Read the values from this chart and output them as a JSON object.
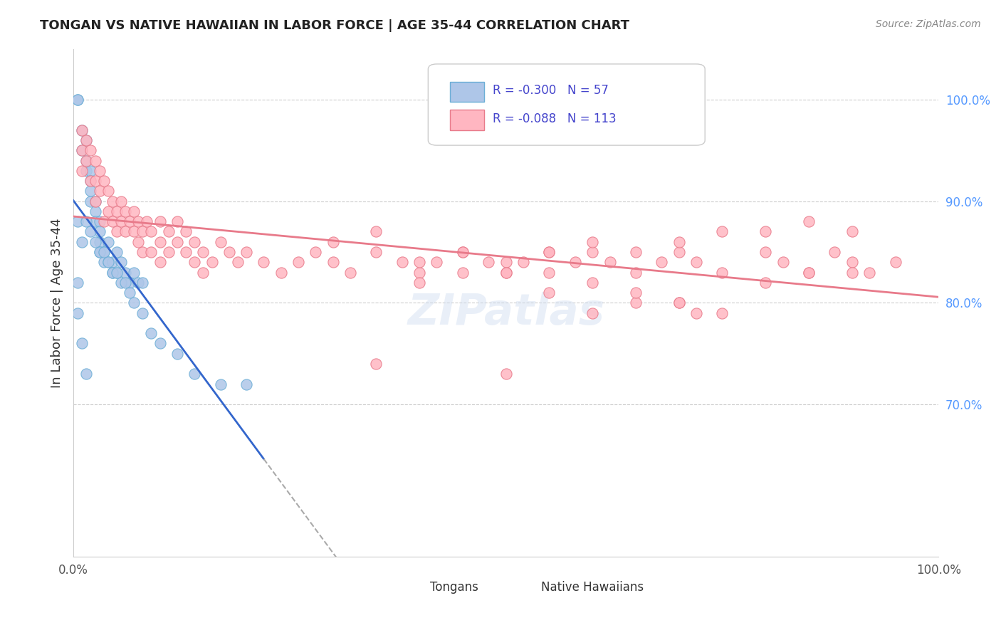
{
  "title": "TONGAN VS NATIVE HAWAIIAN IN LABOR FORCE | AGE 35-44 CORRELATION CHART",
  "source": "Source: ZipAtlas.com",
  "xlabel": "",
  "ylabel": "In Labor Force | Age 35-44",
  "xmin": 0.0,
  "xmax": 1.0,
  "ymin": 0.55,
  "ymax": 1.05,
  "xtick_labels": [
    "0.0%",
    "100.0%"
  ],
  "ytick_labels": [
    "70.0%",
    "80.0%",
    "90.0%",
    "100.0%"
  ],
  "ytick_positions": [
    0.7,
    0.8,
    0.9,
    1.0
  ],
  "background_color": "#ffffff",
  "grid_color": "#cccccc",
  "tongan_color": "#aec6e8",
  "tongan_edge_color": "#6baed6",
  "native_hawaiian_color": "#ffb6c1",
  "native_hawaiian_edge_color": "#e87a8a",
  "tongan_R": "-0.300",
  "tongan_N": "57",
  "native_hawaiian_R": "-0.088",
  "native_hawaiian_N": "113",
  "legend_text_color": "#4444cc",
  "watermark": "ZIPatlas",
  "tongan_x": [
    0.005,
    0.005,
    0.01,
    0.01,
    0.015,
    0.015,
    0.015,
    0.02,
    0.02,
    0.02,
    0.02,
    0.025,
    0.025,
    0.025,
    0.03,
    0.03,
    0.03,
    0.03,
    0.035,
    0.035,
    0.04,
    0.04,
    0.045,
    0.045,
    0.05,
    0.05,
    0.055,
    0.06,
    0.065,
    0.07,
    0.075,
    0.08,
    0.005,
    0.01,
    0.015,
    0.02,
    0.025,
    0.03,
    0.035,
    0.04,
    0.045,
    0.05,
    0.055,
    0.06,
    0.065,
    0.07,
    0.08,
    0.09,
    0.1,
    0.12,
    0.14,
    0.17,
    0.005,
    0.005,
    0.01,
    0.015,
    0.2
  ],
  "tongan_y": [
    1.0,
    1.0,
    0.97,
    0.95,
    0.96,
    0.94,
    0.93,
    0.93,
    0.92,
    0.91,
    0.9,
    0.9,
    0.89,
    0.88,
    0.88,
    0.87,
    0.86,
    0.85,
    0.85,
    0.84,
    0.86,
    0.84,
    0.84,
    0.83,
    0.85,
    0.83,
    0.84,
    0.83,
    0.82,
    0.83,
    0.82,
    0.82,
    0.88,
    0.86,
    0.88,
    0.87,
    0.86,
    0.85,
    0.85,
    0.84,
    0.83,
    0.83,
    0.82,
    0.82,
    0.81,
    0.8,
    0.79,
    0.77,
    0.76,
    0.75,
    0.73,
    0.72,
    0.82,
    0.79,
    0.76,
    0.73,
    0.72
  ],
  "native_hawaiian_x": [
    0.01,
    0.01,
    0.01,
    0.015,
    0.015,
    0.02,
    0.02,
    0.025,
    0.025,
    0.025,
    0.03,
    0.03,
    0.035,
    0.035,
    0.04,
    0.04,
    0.045,
    0.045,
    0.05,
    0.05,
    0.055,
    0.055,
    0.06,
    0.06,
    0.065,
    0.07,
    0.07,
    0.075,
    0.075,
    0.08,
    0.08,
    0.085,
    0.09,
    0.09,
    0.1,
    0.1,
    0.1,
    0.11,
    0.11,
    0.12,
    0.12,
    0.13,
    0.13,
    0.14,
    0.14,
    0.15,
    0.15,
    0.16,
    0.17,
    0.18,
    0.19,
    0.2,
    0.22,
    0.24,
    0.26,
    0.28,
    0.3,
    0.32,
    0.35,
    0.38,
    0.4,
    0.42,
    0.45,
    0.48,
    0.5,
    0.52,
    0.55,
    0.58,
    0.6,
    0.62,
    0.65,
    0.68,
    0.7,
    0.72,
    0.75,
    0.8,
    0.82,
    0.85,
    0.88,
    0.9,
    0.92,
    0.95,
    0.35,
    0.5,
    0.6,
    0.7,
    0.75,
    0.8,
    0.85,
    0.9,
    0.6,
    0.65,
    0.5,
    0.55,
    0.4,
    0.45,
    0.55,
    0.65,
    0.7,
    0.72,
    0.3,
    0.35,
    0.4,
    0.45,
    0.5,
    0.55,
    0.6,
    0.65,
    0.7,
    0.75,
    0.8,
    0.85,
    0.9
  ],
  "native_hawaiian_y": [
    0.97,
    0.95,
    0.93,
    0.96,
    0.94,
    0.95,
    0.92,
    0.94,
    0.92,
    0.9,
    0.93,
    0.91,
    0.92,
    0.88,
    0.91,
    0.89,
    0.9,
    0.88,
    0.89,
    0.87,
    0.9,
    0.88,
    0.89,
    0.87,
    0.88,
    0.89,
    0.87,
    0.88,
    0.86,
    0.87,
    0.85,
    0.88,
    0.87,
    0.85,
    0.88,
    0.86,
    0.84,
    0.87,
    0.85,
    0.88,
    0.86,
    0.87,
    0.85,
    0.86,
    0.84,
    0.85,
    0.83,
    0.84,
    0.86,
    0.85,
    0.84,
    0.85,
    0.84,
    0.83,
    0.84,
    0.85,
    0.84,
    0.83,
    0.85,
    0.84,
    0.83,
    0.84,
    0.85,
    0.84,
    0.83,
    0.84,
    0.83,
    0.84,
    0.85,
    0.84,
    0.83,
    0.84,
    0.85,
    0.84,
    0.83,
    0.85,
    0.84,
    0.83,
    0.85,
    0.84,
    0.83,
    0.84,
    0.74,
    0.73,
    0.82,
    0.8,
    0.79,
    0.82,
    0.83,
    0.83,
    0.79,
    0.8,
    0.84,
    0.85,
    0.82,
    0.83,
    0.81,
    0.81,
    0.8,
    0.79,
    0.86,
    0.87,
    0.84,
    0.85,
    0.83,
    0.85,
    0.86,
    0.85,
    0.86,
    0.87,
    0.87,
    0.88,
    0.87
  ]
}
